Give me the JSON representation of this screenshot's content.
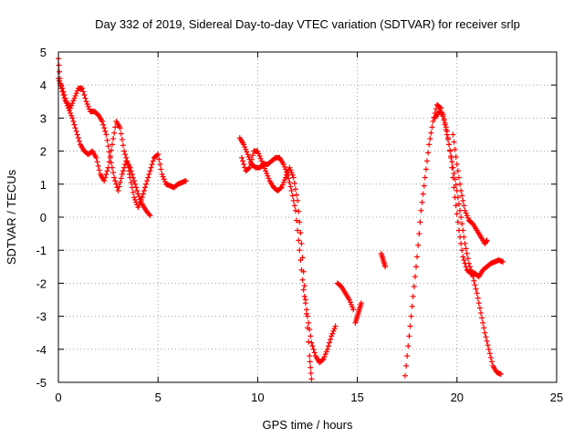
{
  "chart_data": {
    "type": "scatter",
    "title": "Day 332 of 2019, Sidereal Day-to-day VTEC variation (SDTVAR) for receiver srlp",
    "xlabel": "GPS time / hours",
    "ylabel": "SDTVAR / TECUs",
    "xlim": [
      0,
      25
    ],
    "ylim": [
      -5,
      5
    ],
    "xticks": [
      0,
      5,
      10,
      15,
      20,
      25
    ],
    "yticks": [
      -5,
      -4,
      -3,
      -2,
      -1,
      0,
      1,
      2,
      3,
      4,
      5
    ],
    "grid": true,
    "marker": "+",
    "color": "#ff0000",
    "series": [
      {
        "name": "srlp",
        "segments": [
          {
            "x": [
              0.0,
              0.1,
              0.3,
              0.5,
              0.7,
              0.9,
              1.1,
              1.3,
              1.5,
              1.7,
              1.9,
              2.1,
              2.3,
              2.5,
              2.7,
              2.9,
              3.1,
              3.3,
              3.5,
              3.6,
              3.8,
              4.0,
              4.2,
              4.4,
              4.6,
              4.8,
              5.0,
              5.2,
              5.4,
              5.6,
              5.8,
              6.0,
              6.2,
              6.4
            ],
            "y": [
              4.8,
              4.0,
              3.6,
              3.3,
              3.0,
              2.6,
              2.2,
              2.0,
              1.9,
              2.0,
              1.8,
              1.3,
              1.1,
              1.5,
              2.2,
              2.9,
              2.7,
              2.0,
              1.6,
              1.2,
              0.6,
              0.3,
              0.6,
              1.0,
              1.4,
              1.8,
              1.9,
              1.3,
              1.0,
              0.95,
              0.9,
              1.0,
              1.05,
              1.1
            ]
          },
          {
            "x": [
              0.0,
              0.2,
              0.4,
              0.6,
              0.8,
              1.0,
              1.2,
              1.4,
              1.6,
              1.8,
              2.0,
              2.2,
              2.4,
              2.6,
              2.8,
              3.0,
              3.2,
              3.4,
              3.6,
              3.8,
              4.0,
              4.2,
              4.4,
              4.6
            ],
            "y": [
              4.2,
              3.9,
              3.5,
              3.3,
              3.6,
              3.9,
              3.9,
              3.5,
              3.2,
              3.2,
              3.1,
              2.9,
              2.5,
              1.8,
              1.2,
              0.8,
              1.3,
              1.7,
              1.5,
              1.1,
              0.7,
              0.4,
              0.2,
              0.05
            ]
          },
          {
            "x": [
              9.1,
              9.3,
              9.5,
              9.7,
              9.9,
              10.1,
              10.3,
              10.5,
              10.7,
              10.9,
              11.1,
              11.3,
              11.5,
              11.7,
              11.9,
              12.1,
              12.3,
              12.5,
              12.7,
              12.9,
              13.1,
              13.3,
              13.5,
              13.7,
              13.9
            ],
            "y": [
              2.4,
              2.2,
              1.9,
              1.6,
              1.5,
              1.5,
              1.6,
              1.6,
              1.7,
              1.8,
              1.8,
              1.6,
              1.3,
              0.8,
              0.2,
              -1.0,
              -2.2,
              -3.0,
              -3.8,
              -4.2,
              -4.4,
              -4.3,
              -4.0,
              -3.6,
              -3.3
            ]
          },
          {
            "x": [
              9.2,
              9.4,
              9.6,
              9.8,
              10.0,
              10.2,
              10.4,
              10.6,
              10.8,
              11.0,
              11.2,
              11.4,
              11.6,
              11.8,
              12.0,
              12.2,
              12.4,
              12.6,
              12.7
            ],
            "y": [
              1.8,
              1.4,
              1.5,
              2.0,
              2.0,
              1.7,
              1.4,
              1.1,
              0.9,
              0.8,
              0.9,
              1.2,
              1.5,
              1.2,
              0.5,
              -0.8,
              -2.5,
              -4.2,
              -4.9
            ]
          },
          {
            "x": [
              14.0,
              14.2,
              14.4,
              14.6,
              14.8
            ],
            "y": [
              -2.0,
              -2.1,
              -2.3,
              -2.5,
              -2.8
            ]
          },
          {
            "x": [
              14.9,
              15.0,
              15.1,
              15.2
            ],
            "y": [
              -3.2,
              -3.0,
              -2.8,
              -2.6
            ]
          },
          {
            "x": [
              16.2,
              16.3,
              16.4
            ],
            "y": [
              -1.1,
              -1.3,
              -1.5
            ]
          },
          {
            "x": [
              17.4,
              17.6,
              17.8,
              18.0,
              18.2,
              18.4,
              18.6,
              18.8,
              19.0,
              19.2,
              19.4,
              19.6,
              19.8,
              20.0,
              20.2,
              20.4,
              20.6,
              20.8,
              21.0,
              21.2,
              21.4,
              21.6,
              21.8,
              22.0,
              22.2
            ],
            "y": [
              -4.8,
              -3.6,
              -2.4,
              -1.2,
              0.2,
              1.2,
              2.2,
              2.9,
              3.4,
              3.3,
              2.8,
              2.2,
              1.5,
              0.8,
              0.0,
              -0.8,
              -1.4,
              -1.8,
              -2.3,
              -2.9,
              -3.5,
              -4.0,
              -4.5,
              -4.7,
              -4.75
            ]
          },
          {
            "x": [
              18.9,
              19.1,
              19.3,
              19.5,
              19.7,
              19.9,
              20.1,
              20.3,
              20.5,
              20.7,
              20.9,
              21.1,
              21.3,
              21.5,
              21.7,
              21.9,
              22.1,
              22.3
            ],
            "y": [
              3.0,
              3.2,
              3.1,
              2.6,
              1.8,
              0.6,
              -0.4,
              -1.2,
              -1.6,
              -1.7,
              -1.7,
              -1.8,
              -1.6,
              -1.5,
              -1.4,
              -1.35,
              -1.3,
              -1.35
            ]
          },
          {
            "x": [
              19.8,
              20.0,
              20.2,
              20.4,
              20.6,
              20.8,
              21.0,
              21.2,
              21.4,
              21.5
            ],
            "y": [
              2.5,
              1.6,
              0.8,
              0.2,
              -0.1,
              -0.2,
              -0.4,
              -0.6,
              -0.8,
              -0.7
            ]
          }
        ]
      }
    ]
  }
}
